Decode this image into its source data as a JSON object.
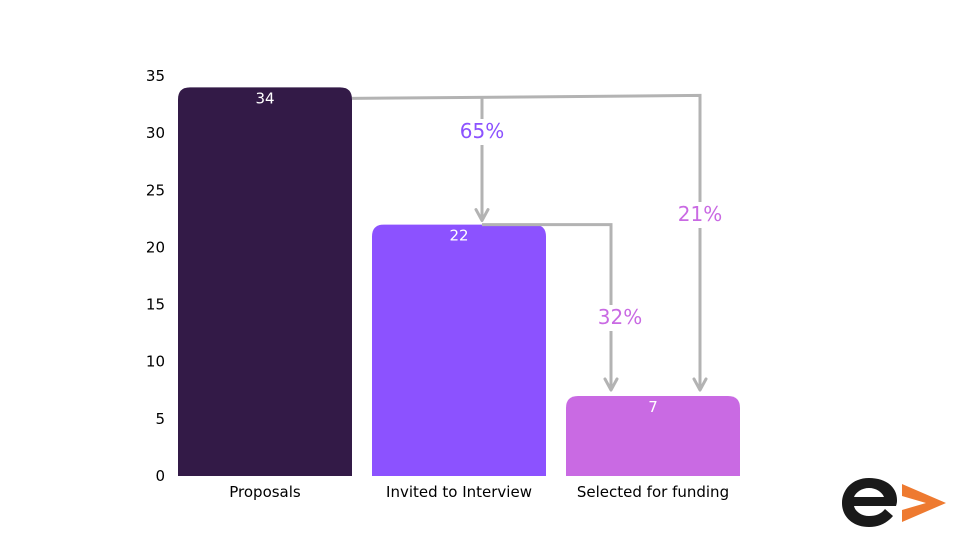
{
  "chart_data": {
    "type": "bar",
    "categories": [
      "Proposals",
      "Invited to Interview",
      "Selected for funding"
    ],
    "values": [
      34,
      22,
      7
    ],
    "value_labels": [
      "34",
      "22",
      "7"
    ],
    "colors": [
      "#331a47",
      "#8c52ff",
      "#c96ae3"
    ],
    "title": "",
    "xlabel": "",
    "ylabel": "",
    "ylim": [
      0,
      35
    ],
    "yticks": [
      0,
      5,
      10,
      15,
      20,
      25,
      30,
      35
    ],
    "grid": false,
    "legend": "none",
    "annotations": [
      {
        "from": "Proposals",
        "to": "Invited to Interview",
        "text": "65%",
        "color": "#8c52ff"
      },
      {
        "from": "Invited to Interview",
        "to": "Selected for funding",
        "text": "32%",
        "color": "#c96ae3"
      },
      {
        "from": "Proposals",
        "to": "Selected for funding",
        "text": "21%",
        "color": "#c96ae3"
      }
    ],
    "arrow_color": "#b3b3b3"
  },
  "logo": {
    "icon": "e-arrow-logo-icon",
    "colors": {
      "letter": "#1a1a1a",
      "arrow": "#ee7a30"
    }
  }
}
